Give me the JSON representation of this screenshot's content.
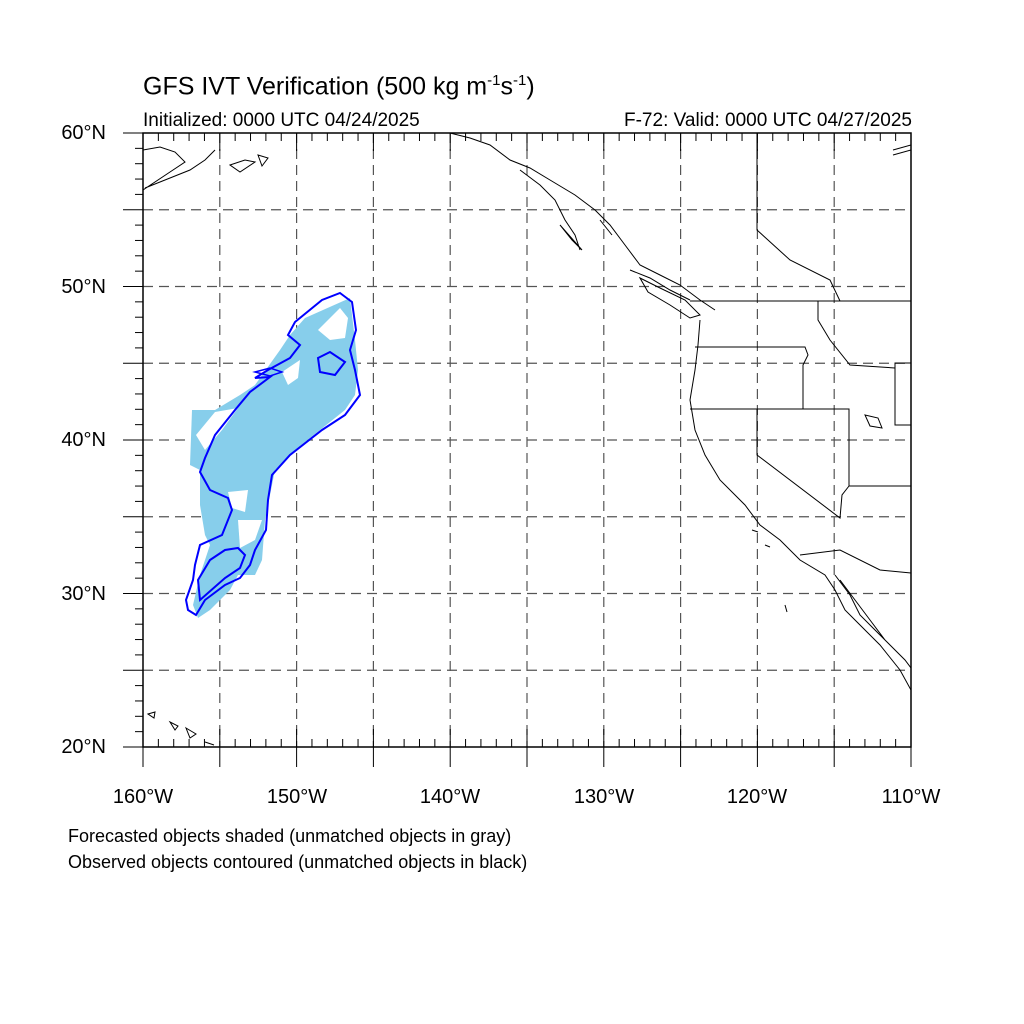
{
  "title": {
    "main": "GFS IVT Verification (500 kg m",
    "sup1": "-1",
    "mid": "s",
    "sup2": "-1",
    "end": ")"
  },
  "initialized": "Initialized: 0000 UTC 04/24/2025",
  "valid": "F-72: Valid: 0000 UTC 04/27/2025",
  "map": {
    "lat_labels": [
      "60°N",
      "50°N",
      "40°N",
      "30°N",
      "20°N"
    ],
    "lon_labels": [
      "160°W",
      "150°W",
      "140°W",
      "130°W",
      "120°W",
      "110°W"
    ],
    "extent": {
      "lon": [
        -160,
        -110
      ],
      "lat": [
        20,
        60
      ]
    },
    "gridlines": "dashed, every 5°",
    "forecast_fill_color": "#87ceeb",
    "observed_contour_color": "#0000ff"
  },
  "footnotes": {
    "line1": "Forecasted objects shaded (unmatched objects in gray)",
    "line2": "Observed objects contoured (unmatched objects in black)"
  }
}
